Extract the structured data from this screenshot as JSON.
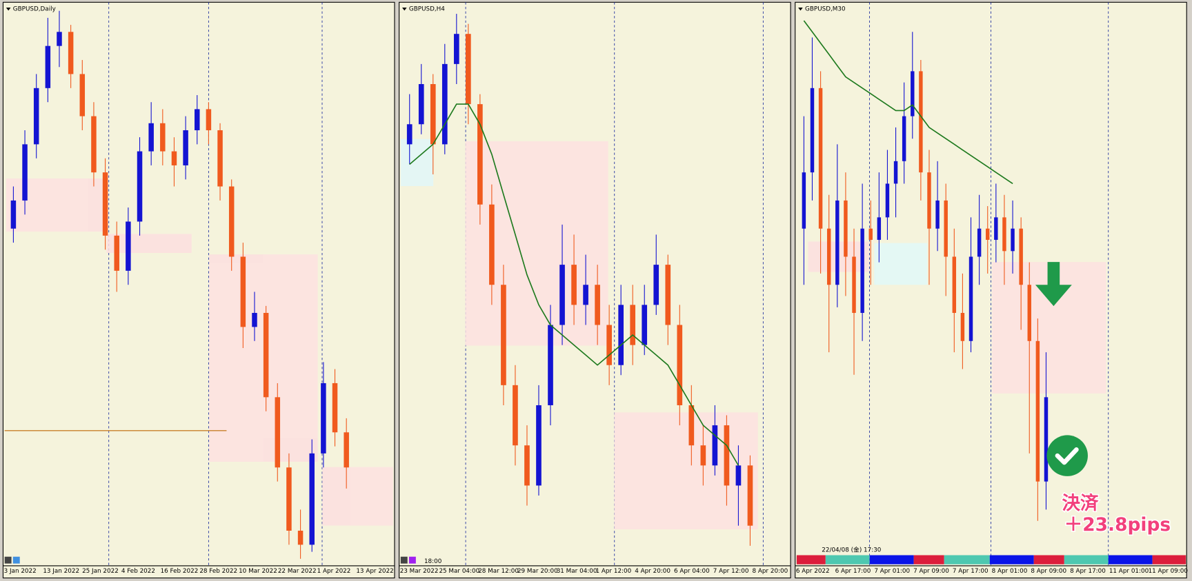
{
  "panels": [
    {
      "title": "GBPUSD,Daily",
      "price_range": [
        1.296,
        1.376
      ],
      "candles": [
        [
          1.344,
          1.35,
          1.342,
          1.348
        ],
        [
          1.348,
          1.358,
          1.346,
          1.356
        ],
        [
          1.356,
          1.366,
          1.354,
          1.364
        ],
        [
          1.364,
          1.374,
          1.362,
          1.37
        ],
        [
          1.37,
          1.375,
          1.367,
          1.372
        ],
        [
          1.372,
          1.373,
          1.364,
          1.366
        ],
        [
          1.366,
          1.368,
          1.358,
          1.36
        ],
        [
          1.36,
          1.362,
          1.35,
          1.352
        ],
        [
          1.352,
          1.354,
          1.341,
          1.343
        ],
        [
          1.343,
          1.345,
          1.335,
          1.338
        ],
        [
          1.338,
          1.347,
          1.336,
          1.345
        ],
        [
          1.345,
          1.357,
          1.343,
          1.355
        ],
        [
          1.355,
          1.362,
          1.353,
          1.359
        ],
        [
          1.359,
          1.361,
          1.353,
          1.355
        ],
        [
          1.355,
          1.357,
          1.35,
          1.353
        ],
        [
          1.353,
          1.36,
          1.351,
          1.358
        ],
        [
          1.358,
          1.363,
          1.356,
          1.361
        ],
        [
          1.361,
          1.362,
          1.356,
          1.358
        ],
        [
          1.358,
          1.359,
          1.348,
          1.35
        ],
        [
          1.35,
          1.351,
          1.338,
          1.34
        ],
        [
          1.34,
          1.342,
          1.327,
          1.33
        ],
        [
          1.33,
          1.335,
          1.328,
          1.332
        ],
        [
          1.332,
          1.333,
          1.318,
          1.32
        ],
        [
          1.32,
          1.322,
          1.308,
          1.31
        ],
        [
          1.31,
          1.312,
          1.299,
          1.301
        ],
        [
          1.301,
          1.304,
          1.297,
          1.299
        ],
        [
          1.299,
          1.314,
          1.298,
          1.312
        ],
        [
          1.312,
          1.325,
          1.31,
          1.322
        ],
        [
          1.322,
          1.324,
          1.313,
          1.315
        ],
        [
          1.315,
          1.317,
          1.307,
          1.31
        ]
      ],
      "x_labels": [
        "3 Jan 2022",
        "13 Jan 2022",
        "25 Jan 2022",
        "4 Feb 2022",
        "16 Feb 2022",
        "28 Feb 2022",
        "10 Mar 2022",
        "22 Mar 2022",
        "1 Apr 2022",
        "13 Apr 2022"
      ]
    },
    {
      "title": "GBPUSD,H4",
      "price_range": [
        1.302,
        1.33
      ],
      "candles": [
        [
          1.323,
          1.3255,
          1.322,
          1.324
        ],
        [
          1.324,
          1.327,
          1.3235,
          1.326
        ],
        [
          1.326,
          1.3265,
          1.3215,
          1.323
        ],
        [
          1.323,
          1.328,
          1.3225,
          1.327
        ],
        [
          1.327,
          1.3295,
          1.326,
          1.3285
        ],
        [
          1.3285,
          1.329,
          1.324,
          1.325
        ],
        [
          1.325,
          1.3255,
          1.319,
          1.32
        ],
        [
          1.32,
          1.321,
          1.315,
          1.316
        ],
        [
          1.316,
          1.317,
          1.31,
          1.311
        ],
        [
          1.311,
          1.312,
          1.307,
          1.308
        ],
        [
          1.308,
          1.309,
          1.305,
          1.306
        ],
        [
          1.306,
          1.311,
          1.3055,
          1.31
        ],
        [
          1.31,
          1.315,
          1.309,
          1.314
        ],
        [
          1.314,
          1.319,
          1.313,
          1.317
        ],
        [
          1.317,
          1.3185,
          1.314,
          1.315
        ],
        [
          1.315,
          1.3175,
          1.314,
          1.316
        ],
        [
          1.316,
          1.317,
          1.313,
          1.314
        ],
        [
          1.314,
          1.315,
          1.311,
          1.312
        ],
        [
          1.312,
          1.316,
          1.3115,
          1.315
        ],
        [
          1.315,
          1.316,
          1.312,
          1.313
        ],
        [
          1.313,
          1.316,
          1.3125,
          1.315
        ],
        [
          1.315,
          1.3185,
          1.3145,
          1.317
        ],
        [
          1.317,
          1.3175,
          1.313,
          1.314
        ],
        [
          1.314,
          1.315,
          1.309,
          1.31
        ],
        [
          1.31,
          1.311,
          1.307,
          1.308
        ],
        [
          1.308,
          1.309,
          1.306,
          1.307
        ],
        [
          1.307,
          1.31,
          1.3065,
          1.309
        ],
        [
          1.309,
          1.3095,
          1.305,
          1.306
        ],
        [
          1.306,
          1.308,
          1.304,
          1.307
        ],
        [
          1.307,
          1.3075,
          1.303,
          1.304
        ]
      ],
      "ma": [
        1.322,
        1.3225,
        1.323,
        1.324,
        1.325,
        1.325,
        1.324,
        1.3225,
        1.3205,
        1.3185,
        1.3165,
        1.315,
        1.314,
        1.3135,
        1.313,
        1.3125,
        1.312,
        1.3125,
        1.313,
        1.3135,
        1.313,
        1.3125,
        1.312,
        1.311,
        1.31,
        1.309,
        1.3085,
        1.308,
        1.307,
        null
      ],
      "x_labels": [
        "23 Mar 2022",
        "25 Mar 04:00",
        "28 Mar 12:00",
        "29 Mar 20:00",
        "31 Mar 04:00",
        "1 Apr 12:00",
        "4 Apr 20:00",
        "6 Apr 04:00",
        "7 Apr 12:00",
        "8 Apr 20:00"
      ],
      "time_label": "18:00"
    },
    {
      "title": "GBPUSD,M30",
      "price_range": [
        1.299,
        1.309
      ],
      "candles": [
        [
          1.305,
          1.307,
          1.304,
          1.306
        ],
        [
          1.306,
          1.3084,
          1.3055,
          1.3075
        ],
        [
          1.3075,
          1.3078,
          1.3042,
          1.305
        ],
        [
          1.305,
          1.3056,
          1.3028,
          1.304
        ],
        [
          1.304,
          1.3065,
          1.3036,
          1.3055
        ],
        [
          1.3055,
          1.306,
          1.3038,
          1.3045
        ],
        [
          1.3045,
          1.305,
          1.3024,
          1.3035
        ],
        [
          1.3035,
          1.3058,
          1.303,
          1.305
        ],
        [
          1.305,
          1.3055,
          1.304,
          1.3048
        ],
        [
          1.3048,
          1.306,
          1.3044,
          1.3052
        ],
        [
          1.3052,
          1.3064,
          1.3048,
          1.3058
        ],
        [
          1.3058,
          1.3068,
          1.3052,
          1.3062
        ],
        [
          1.3062,
          1.3076,
          1.3058,
          1.307
        ],
        [
          1.307,
          1.3085,
          1.3066,
          1.3078
        ],
        [
          1.3078,
          1.308,
          1.3055,
          1.306
        ],
        [
          1.306,
          1.3064,
          1.304,
          1.305
        ],
        [
          1.305,
          1.3062,
          1.3046,
          1.3055
        ],
        [
          1.3055,
          1.3058,
          1.3038,
          1.3045
        ],
        [
          1.3045,
          1.305,
          1.3028,
          1.3035
        ],
        [
          1.3035,
          1.3042,
          1.3025,
          1.303
        ],
        [
          1.303,
          1.3052,
          1.3028,
          1.3045
        ],
        [
          1.3045,
          1.3056,
          1.304,
          1.305
        ],
        [
          1.305,
          1.3054,
          1.3042,
          1.3048
        ],
        [
          1.3048,
          1.3058,
          1.3044,
          1.3052
        ],
        [
          1.3052,
          1.3056,
          1.304,
          1.3046
        ],
        [
          1.3046,
          1.3055,
          1.3042,
          1.305
        ],
        [
          1.305,
          1.3052,
          1.3032,
          1.304
        ],
        [
          1.304,
          1.3044,
          1.301,
          1.303
        ],
        [
          1.303,
          1.3034,
          1.2998,
          1.3005
        ],
        [
          1.3005,
          1.3028,
          1.3,
          1.302
        ]
      ],
      "ma": [
        1.3087,
        1.3085,
        1.3083,
        1.3081,
        1.3079,
        1.3077,
        1.3076,
        1.3075,
        1.3074,
        1.3073,
        1.3072,
        1.3071,
        1.3071,
        1.3072,
        1.307,
        1.3068,
        1.3067,
        1.3066,
        1.3065,
        1.3064,
        1.3063,
        1.3062,
        1.3061,
        1.306,
        1.3059,
        1.3058,
        null,
        null,
        null,
        null
      ],
      "x_labels": [
        "6 Apr 2022",
        "6 Apr 17:00",
        "7 Apr 01:00",
        "7 Apr 09:00",
        "7 Apr 17:00",
        "8 Apr 01:00",
        "8 Apr 09:00",
        "8 Apr 17:00",
        "11 Apr 01:00",
        "11 Apr 09:00"
      ],
      "time_label": "22/04/08 (金) 17:30"
    }
  ],
  "annotation": {
    "line1": "決済",
    "line2": "＋23.8pips"
  }
}
